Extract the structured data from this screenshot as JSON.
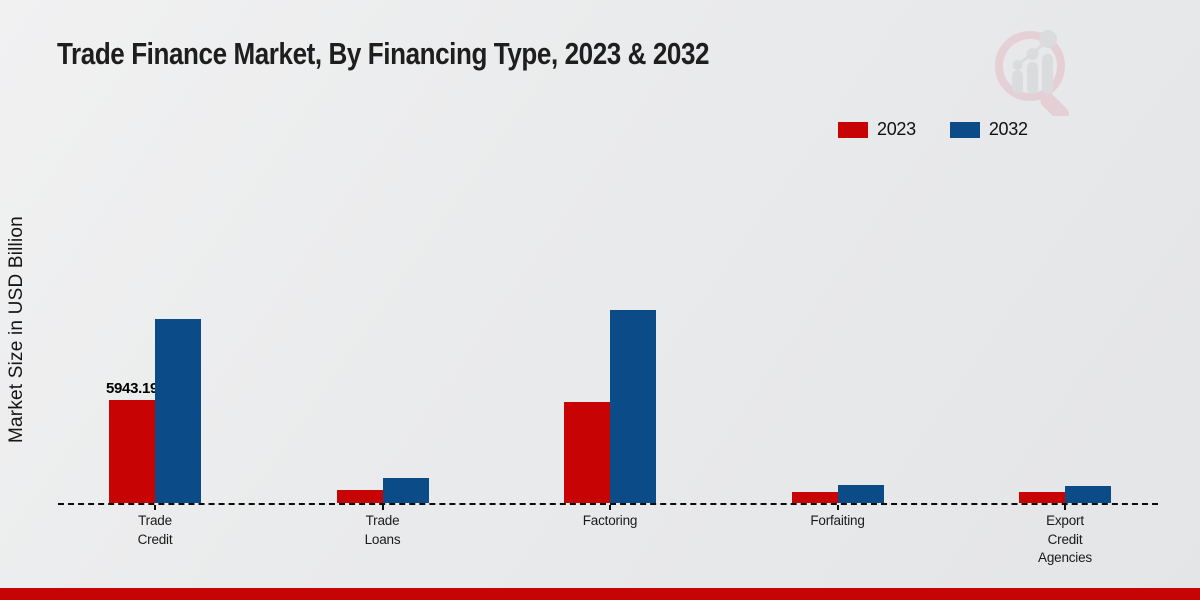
{
  "page": {
    "title": "Trade Finance Market, By Financing Type, 2023 & 2032",
    "accent_strip_color": "#c70404"
  },
  "icons": {
    "logo": "magnifier-bar-chart-watermark-icon"
  },
  "chart_data": {
    "type": "bar",
    "title": "Trade Finance Market, By Financing Type, 2023 & 2032",
    "xlabel": "",
    "ylabel": "Market Size in USD Billion",
    "categories": [
      "Trade Credit",
      "Trade Loans",
      "Factoring",
      "Forfaiting",
      "Export Credit Agencies"
    ],
    "category_label_lines": [
      "Trade\nCredit",
      "Trade\nLoans",
      "Factoring",
      "Forfaiting",
      "Export\nCredit\nAgencies"
    ],
    "series": [
      {
        "name": "2023",
        "color": "#c70303",
        "values": [
          5943.19,
          750,
          5830,
          635,
          635
        ]
      },
      {
        "name": "2032",
        "color": "#0a4b88",
        "values": [
          10620,
          1440,
          11140,
          1040,
          980
        ]
      }
    ],
    "bar_labels": [
      {
        "series": 0,
        "category": 0,
        "text": "5943.19"
      }
    ],
    "ylim": [
      0,
      22000
    ],
    "grid": "off",
    "axis_line_style": "dashed",
    "legend_position": "top-right"
  }
}
